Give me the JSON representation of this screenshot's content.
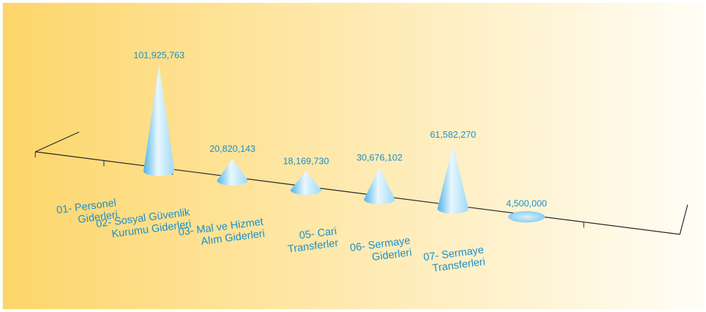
{
  "chart_data": {
    "type": "bar",
    "style": "3d-cone",
    "title": "",
    "xlabel": "",
    "ylabel": "",
    "ylim": [
      0,
      101925763
    ],
    "grid": false,
    "legend": "none",
    "categories": [
      [
        "01- Personel",
        "Giderleri"
      ],
      [
        "02- Sosyal Güvenlik",
        "Kurumu Giderleri"
      ],
      [
        "03- Mal ve Hizmet",
        "Alım Giderleri"
      ],
      [
        "05- Cari",
        "Transferler"
      ],
      [
        "06- Sermaye",
        "Giderleri"
      ],
      [
        "07- Sermaye",
        "Transferleri"
      ]
    ],
    "values": [
      101925763,
      20820143,
      18169730,
      30676102,
      61582270,
      4500000
    ],
    "value_labels": [
      "101,925,763",
      "20,820,143",
      "18,169,730",
      "30,676,102",
      "61,582,270",
      "4,500,000"
    ],
    "colors": {
      "background_left": "#fdd66a",
      "background_right": "#fffdf6",
      "cone_light": "#e8f7ff",
      "cone_mid": "#9fd9f7",
      "cone_dark": "#4fb3e8",
      "label": "#1f8fc9",
      "axis": "#222222"
    }
  }
}
